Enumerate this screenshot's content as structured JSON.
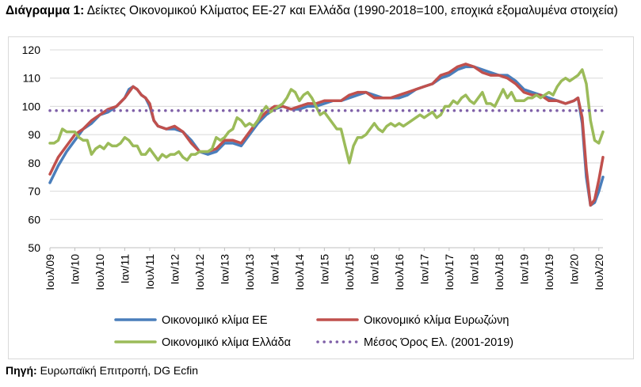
{
  "title": {
    "lead": "Διάγραμμα 1:",
    "text": "Δείκτες Οικονομικού Κλίματος ΕΕ-27 και Ελλάδα (1990-2018=100, εποχικά εξομαλυμένα στοιχεία)"
  },
  "source": {
    "lead": "Πηγή:",
    "text": "Ευρωπαϊκή Επιτροπή, DG Ecfin"
  },
  "chart_data": {
    "type": "line",
    "title": "Δείκτες Οικονομικού Κλίματος ΕΕ-27 και Ελλάδα (1990-2018=100, εποχικά εξομαλυμένα στοιχεία)",
    "xlabel": "",
    "ylabel": "",
    "ylim": [
      50,
      120
    ],
    "yticks": [
      50,
      60,
      70,
      80,
      90,
      100,
      110,
      120
    ],
    "grid": "horizontal",
    "legend_position": "bottom",
    "x_tick_labels": [
      "Ιουλ/09",
      "Ιαν/10",
      "Ιουλ/10",
      "Ιαν/11",
      "Ιουλ/11",
      "Ιαν/12",
      "Ιουλ/12",
      "Ιαν/13",
      "Ιουλ/13",
      "Ιαν/14",
      "Ιουλ/14",
      "Ιαν/15",
      "Ιουλ/15",
      "Ιαν/16",
      "Ιουλ/16",
      "Ιαν/17",
      "Ιουλ/17",
      "Ιαν/18",
      "Ιουλ/18",
      "Ιαν/19",
      "Ιουλ/19",
      "Ιαν/20",
      "Ιουλ/20"
    ],
    "x_months": [
      0,
      6,
      12,
      18,
      24,
      30,
      36,
      42,
      48,
      54,
      60,
      66,
      72,
      78,
      84,
      90,
      96,
      102,
      108,
      114,
      120,
      126,
      132
    ],
    "series": [
      {
        "name": "Οικονομικό κλίμα ΕΕ",
        "color": "#4a7ebb",
        "style": "solid",
        "points": [
          [
            0,
            73
          ],
          [
            2,
            79
          ],
          [
            4,
            84
          ],
          [
            6,
            88
          ],
          [
            8,
            92
          ],
          [
            10,
            94
          ],
          [
            12,
            97
          ],
          [
            14,
            98
          ],
          [
            16,
            100
          ],
          [
            18,
            103
          ],
          [
            19,
            106
          ],
          [
            20,
            107
          ],
          [
            21,
            106
          ],
          [
            22,
            104
          ],
          [
            23,
            103
          ],
          [
            24,
            100
          ],
          [
            25,
            95
          ],
          [
            26,
            93
          ],
          [
            28,
            92
          ],
          [
            30,
            92
          ],
          [
            32,
            91
          ],
          [
            34,
            88
          ],
          [
            36,
            84
          ],
          [
            38,
            83
          ],
          [
            40,
            84
          ],
          [
            42,
            87
          ],
          [
            44,
            87
          ],
          [
            46,
            86
          ],
          [
            48,
            90
          ],
          [
            50,
            94
          ],
          [
            52,
            97
          ],
          [
            54,
            99
          ],
          [
            56,
            100
          ],
          [
            58,
            99
          ],
          [
            60,
            99
          ],
          [
            62,
            100
          ],
          [
            64,
            100
          ],
          [
            66,
            101
          ],
          [
            68,
            102
          ],
          [
            70,
            102
          ],
          [
            72,
            103
          ],
          [
            74,
            104
          ],
          [
            76,
            105
          ],
          [
            78,
            104
          ],
          [
            80,
            103
          ],
          [
            82,
            103
          ],
          [
            84,
            103
          ],
          [
            86,
            104
          ],
          [
            88,
            106
          ],
          [
            90,
            107
          ],
          [
            92,
            108
          ],
          [
            94,
            110
          ],
          [
            96,
            111
          ],
          [
            98,
            113
          ],
          [
            100,
            114
          ],
          [
            102,
            114
          ],
          [
            104,
            113
          ],
          [
            106,
            112
          ],
          [
            108,
            111
          ],
          [
            110,
            111
          ],
          [
            112,
            109
          ],
          [
            114,
            106
          ],
          [
            116,
            105
          ],
          [
            118,
            104
          ],
          [
            120,
            103
          ],
          [
            122,
            102
          ],
          [
            124,
            101
          ],
          [
            126,
            102
          ],
          [
            127,
            103
          ],
          [
            128,
            94
          ],
          [
            129,
            75
          ],
          [
            130,
            65
          ],
          [
            131,
            66
          ],
          [
            132,
            70
          ],
          [
            133,
            75
          ]
        ]
      },
      {
        "name": "Οικονομικό κλίμα Ευρωζώνη",
        "color": "#c0504d",
        "style": "solid",
        "points": [
          [
            0,
            76
          ],
          [
            2,
            82
          ],
          [
            4,
            86
          ],
          [
            6,
            90
          ],
          [
            8,
            92
          ],
          [
            10,
            95
          ],
          [
            12,
            97
          ],
          [
            14,
            99
          ],
          [
            16,
            100
          ],
          [
            18,
            103
          ],
          [
            19,
            105
          ],
          [
            20,
            107
          ],
          [
            21,
            106
          ],
          [
            22,
            104
          ],
          [
            23,
            103
          ],
          [
            24,
            101
          ],
          [
            25,
            95
          ],
          [
            26,
            93
          ],
          [
            28,
            92
          ],
          [
            30,
            93
          ],
          [
            32,
            91
          ],
          [
            34,
            87
          ],
          [
            36,
            84
          ],
          [
            38,
            84
          ],
          [
            40,
            85
          ],
          [
            42,
            88
          ],
          [
            44,
            88
          ],
          [
            46,
            87
          ],
          [
            48,
            91
          ],
          [
            50,
            95
          ],
          [
            52,
            98
          ],
          [
            54,
            100
          ],
          [
            56,
            100
          ],
          [
            58,
            99
          ],
          [
            60,
            100
          ],
          [
            62,
            101
          ],
          [
            64,
            101
          ],
          [
            66,
            102
          ],
          [
            68,
            102
          ],
          [
            70,
            102
          ],
          [
            72,
            104
          ],
          [
            74,
            105
          ],
          [
            76,
            105
          ],
          [
            78,
            103
          ],
          [
            80,
            103
          ],
          [
            82,
            103
          ],
          [
            84,
            104
          ],
          [
            86,
            105
          ],
          [
            88,
            106
          ],
          [
            90,
            107
          ],
          [
            92,
            108
          ],
          [
            94,
            111
          ],
          [
            96,
            112
          ],
          [
            98,
            114
          ],
          [
            100,
            115
          ],
          [
            102,
            114
          ],
          [
            104,
            112
          ],
          [
            106,
            111
          ],
          [
            108,
            111
          ],
          [
            110,
            110
          ],
          [
            112,
            108
          ],
          [
            114,
            105
          ],
          [
            116,
            104
          ],
          [
            118,
            104
          ],
          [
            120,
            102
          ],
          [
            122,
            102
          ],
          [
            124,
            101
          ],
          [
            126,
            102
          ],
          [
            127,
            103
          ],
          [
            128,
            96
          ],
          [
            129,
            78
          ],
          [
            130,
            65
          ],
          [
            131,
            67
          ],
          [
            132,
            74
          ],
          [
            133,
            82
          ]
        ]
      },
      {
        "name": "Οικονομικό κλίμα Ελλάδα",
        "color": "#9bbb59",
        "style": "solid",
        "points": [
          [
            0,
            87
          ],
          [
            1,
            87
          ],
          [
            2,
            88
          ],
          [
            3,
            92
          ],
          [
            4,
            91
          ],
          [
            5,
            91
          ],
          [
            6,
            91
          ],
          [
            7,
            89
          ],
          [
            8,
            88
          ],
          [
            9,
            88
          ],
          [
            10,
            83
          ],
          [
            11,
            85
          ],
          [
            12,
            86
          ],
          [
            13,
            85
          ],
          [
            14,
            87
          ],
          [
            15,
            86
          ],
          [
            16,
            86
          ],
          [
            17,
            87
          ],
          [
            18,
            89
          ],
          [
            19,
            88
          ],
          [
            20,
            86
          ],
          [
            21,
            86
          ],
          [
            22,
            83
          ],
          [
            23,
            83
          ],
          [
            24,
            85
          ],
          [
            25,
            83
          ],
          [
            26,
            81
          ],
          [
            27,
            83
          ],
          [
            28,
            82
          ],
          [
            29,
            83
          ],
          [
            30,
            83
          ],
          [
            31,
            84
          ],
          [
            32,
            82
          ],
          [
            33,
            81
          ],
          [
            34,
            83
          ],
          [
            35,
            83
          ],
          [
            36,
            84
          ],
          [
            37,
            84
          ],
          [
            38,
            84
          ],
          [
            39,
            85
          ],
          [
            40,
            89
          ],
          [
            41,
            88
          ],
          [
            42,
            89
          ],
          [
            43,
            91
          ],
          [
            44,
            92
          ],
          [
            45,
            96
          ],
          [
            46,
            95
          ],
          [
            47,
            93
          ],
          [
            48,
            94
          ],
          [
            49,
            93
          ],
          [
            50,
            95
          ],
          [
            51,
            98
          ],
          [
            52,
            100
          ],
          [
            53,
            98
          ],
          [
            54,
            99
          ],
          [
            55,
            100
          ],
          [
            56,
            101
          ],
          [
            57,
            103
          ],
          [
            58,
            106
          ],
          [
            59,
            105
          ],
          [
            60,
            102
          ],
          [
            61,
            104
          ],
          [
            62,
            105
          ],
          [
            63,
            103
          ],
          [
            64,
            100
          ],
          [
            65,
            97
          ],
          [
            66,
            98
          ],
          [
            67,
            96
          ],
          [
            68,
            94
          ],
          [
            69,
            92
          ],
          [
            70,
            92
          ],
          [
            71,
            86
          ],
          [
            72,
            80
          ],
          [
            73,
            86
          ],
          [
            74,
            89
          ],
          [
            75,
            89
          ],
          [
            76,
            90
          ],
          [
            77,
            92
          ],
          [
            78,
            94
          ],
          [
            79,
            92
          ],
          [
            80,
            91
          ],
          [
            81,
            93
          ],
          [
            82,
            94
          ],
          [
            83,
            93
          ],
          [
            84,
            94
          ],
          [
            85,
            93
          ],
          [
            86,
            94
          ],
          [
            87,
            95
          ],
          [
            88,
            96
          ],
          [
            89,
            97
          ],
          [
            90,
            96
          ],
          [
            91,
            97
          ],
          [
            92,
            98
          ],
          [
            93,
            96
          ],
          [
            94,
            97
          ],
          [
            95,
            100
          ],
          [
            96,
            100
          ],
          [
            97,
            102
          ],
          [
            98,
            101
          ],
          [
            99,
            103
          ],
          [
            100,
            104
          ],
          [
            101,
            102
          ],
          [
            102,
            101
          ],
          [
            103,
            103
          ],
          [
            104,
            105
          ],
          [
            105,
            101
          ],
          [
            106,
            101
          ],
          [
            107,
            100
          ],
          [
            108,
            103
          ],
          [
            109,
            106
          ],
          [
            110,
            103
          ],
          [
            111,
            105
          ],
          [
            112,
            102
          ],
          [
            113,
            102
          ],
          [
            114,
            102
          ],
          [
            115,
            103
          ],
          [
            116,
            103
          ],
          [
            117,
            104
          ],
          [
            118,
            103
          ],
          [
            119,
            104
          ],
          [
            120,
            105
          ],
          [
            121,
            104
          ],
          [
            122,
            107
          ],
          [
            123,
            109
          ],
          [
            124,
            110
          ],
          [
            125,
            109
          ],
          [
            126,
            110
          ],
          [
            127,
            111
          ],
          [
            128,
            113
          ],
          [
            129,
            108
          ],
          [
            130,
            95
          ],
          [
            131,
            88
          ],
          [
            132,
            87
          ],
          [
            133,
            91
          ]
        ]
      },
      {
        "name": "Μέσος Όρος Ελ. (2001-2019)",
        "color": "#7f60a8",
        "style": "dotted",
        "points": [
          [
            0,
            98.5
          ],
          [
            133,
            98.5
          ]
        ]
      }
    ]
  }
}
